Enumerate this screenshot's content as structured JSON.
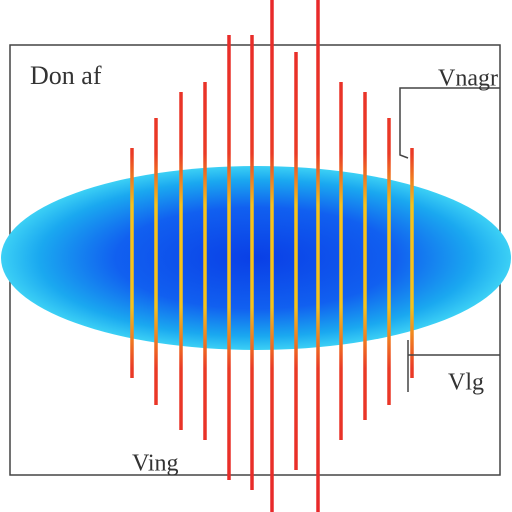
{
  "labels": {
    "top_left": "Don af",
    "top_right": "Vnagr",
    "bottom_right": "Vlg",
    "bottom_center": "Ving"
  }
}
